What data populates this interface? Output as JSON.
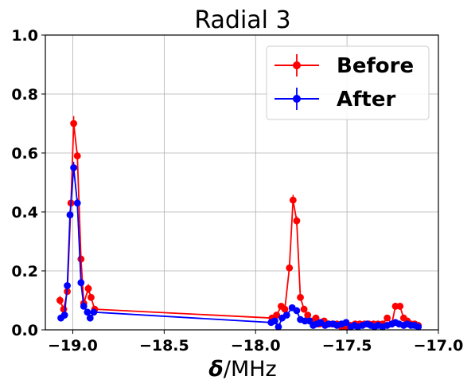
{
  "chart_data": {
    "type": "line",
    "title": "Radial 3",
    "xlabel_symbol": "δ",
    "xlabel_unit": "/MHz",
    "xlim": [
      -19.15,
      -17.0
    ],
    "ylim": [
      0.0,
      1.0
    ],
    "xticks": [
      -19.0,
      -18.5,
      -18.0,
      -17.5,
      -17.0
    ],
    "xtick_labels": [
      "−19.0",
      "−18.5",
      "−18.0",
      "−17.5",
      "−17.0"
    ],
    "yticks": [
      0.0,
      0.2,
      0.4,
      0.6,
      0.8,
      1.0
    ],
    "ytick_labels": [
      "0.0",
      "0.2",
      "0.4",
      "0.6",
      "0.8",
      "1.0"
    ],
    "grid": true,
    "legend_position": "top-right",
    "series": [
      {
        "name": "Before",
        "color": "#ff0000",
        "points": [
          [
            -19.07,
            0.1,
            0.015
          ],
          [
            -19.05,
            0.07,
            0.012
          ],
          [
            -19.03,
            0.13,
            0.012
          ],
          [
            -19.01,
            0.43,
            0.015
          ],
          [
            -18.995,
            0.7,
            0.025
          ],
          [
            -18.975,
            0.59,
            0.015
          ],
          [
            -18.955,
            0.24,
            0.01
          ],
          [
            -18.94,
            0.09,
            0.01
          ],
          [
            -18.915,
            0.14,
            0.015
          ],
          [
            -18.9,
            0.11,
            0.01
          ],
          [
            -18.88,
            0.07,
            0.008
          ],
          [
            -17.91,
            0.04,
            0.01
          ],
          [
            -17.885,
            0.05,
            0.01
          ],
          [
            -17.86,
            0.08,
            0.01
          ],
          [
            -17.84,
            0.07,
            0.01
          ],
          [
            -17.815,
            0.21,
            0.012
          ],
          [
            -17.795,
            0.44,
            0.018
          ],
          [
            -17.775,
            0.37,
            0.015
          ],
          [
            -17.755,
            0.11,
            0.01
          ],
          [
            -17.735,
            0.07,
            0.01
          ],
          [
            -17.715,
            0.05,
            0.008
          ],
          [
            -17.69,
            0.03,
            0.008
          ],
          [
            -17.67,
            0.04,
            0.008
          ],
          [
            -17.65,
            0.02,
            0.008
          ],
          [
            -17.625,
            0.03,
            0.008
          ],
          [
            -17.6,
            0.02,
            0.008
          ],
          [
            -17.58,
            0.02,
            0.008
          ],
          [
            -17.555,
            0.02,
            0.008
          ],
          [
            -17.53,
            0.01,
            0.008
          ],
          [
            -17.505,
            0.01,
            0.008
          ],
          [
            -17.48,
            0.015,
            0.008
          ],
          [
            -17.455,
            0.02,
            0.008
          ],
          [
            -17.43,
            0.02,
            0.008
          ],
          [
            -17.405,
            0.02,
            0.008
          ],
          [
            -17.38,
            0.02,
            0.008
          ],
          [
            -17.355,
            0.02,
            0.008
          ],
          [
            -17.33,
            0.02,
            0.008
          ],
          [
            -17.305,
            0.02,
            0.008
          ],
          [
            -17.28,
            0.04,
            0.01
          ],
          [
            -17.255,
            0.02,
            0.008
          ],
          [
            -17.235,
            0.08,
            0.012
          ],
          [
            -17.21,
            0.08,
            0.012
          ],
          [
            -17.19,
            0.04,
            0.01
          ],
          [
            -17.17,
            0.03,
            0.008
          ],
          [
            -17.15,
            0.02,
            0.008
          ],
          [
            -17.13,
            0.02,
            0.008
          ],
          [
            -17.11,
            0.015,
            0.008
          ]
        ]
      },
      {
        "name": "After",
        "color": "#0000ff",
        "points": [
          [
            -19.065,
            0.04,
            0.008
          ],
          [
            -19.045,
            0.05,
            0.008
          ],
          [
            -19.03,
            0.15,
            0.012
          ],
          [
            -19.015,
            0.39,
            0.015
          ],
          [
            -18.995,
            0.55,
            0.02
          ],
          [
            -18.975,
            0.43,
            0.015
          ],
          [
            -18.955,
            0.16,
            0.01
          ],
          [
            -18.94,
            0.08,
            0.01
          ],
          [
            -18.92,
            0.06,
            0.008
          ],
          [
            -18.905,
            0.04,
            0.008
          ],
          [
            -18.885,
            0.06,
            0.008
          ],
          [
            -17.915,
            0.025,
            0.008
          ],
          [
            -17.895,
            0.03,
            0.008
          ],
          [
            -17.875,
            0.01,
            0.008
          ],
          [
            -17.855,
            0.04,
            0.008
          ],
          [
            -17.83,
            0.05,
            0.008
          ],
          [
            -17.8,
            0.075,
            0.01
          ],
          [
            -17.775,
            0.065,
            0.01
          ],
          [
            -17.755,
            0.035,
            0.008
          ],
          [
            -17.73,
            0.03,
            0.008
          ],
          [
            -17.705,
            0.03,
            0.008
          ],
          [
            -17.685,
            0.015,
            0.008
          ],
          [
            -17.665,
            0.02,
            0.008
          ],
          [
            -17.645,
            0.025,
            0.008
          ],
          [
            -17.62,
            0.015,
            0.008
          ],
          [
            -17.6,
            0.02,
            0.008
          ],
          [
            -17.575,
            0.02,
            0.008
          ],
          [
            -17.555,
            0.015,
            0.008
          ],
          [
            -17.53,
            0.02,
            0.008
          ],
          [
            -17.505,
            0.025,
            0.008
          ],
          [
            -17.48,
            0.01,
            0.008
          ],
          [
            -17.46,
            0.015,
            0.008
          ],
          [
            -17.44,
            0.01,
            0.008
          ],
          [
            -17.415,
            0.015,
            0.008
          ],
          [
            -17.39,
            0.02,
            0.008
          ],
          [
            -17.37,
            0.015,
            0.008
          ],
          [
            -17.35,
            0.01,
            0.008
          ],
          [
            -17.33,
            0.015,
            0.008
          ],
          [
            -17.305,
            0.01,
            0.008
          ],
          [
            -17.28,
            0.015,
            0.008
          ],
          [
            -17.255,
            0.02,
            0.008
          ],
          [
            -17.235,
            0.025,
            0.008
          ],
          [
            -17.215,
            0.02,
            0.008
          ],
          [
            -17.19,
            0.015,
            0.008
          ],
          [
            -17.17,
            0.02,
            0.008
          ],
          [
            -17.15,
            0.015,
            0.008
          ],
          [
            -17.13,
            0.015,
            0.008
          ],
          [
            -17.11,
            0.01,
            0.008
          ]
        ]
      }
    ]
  }
}
